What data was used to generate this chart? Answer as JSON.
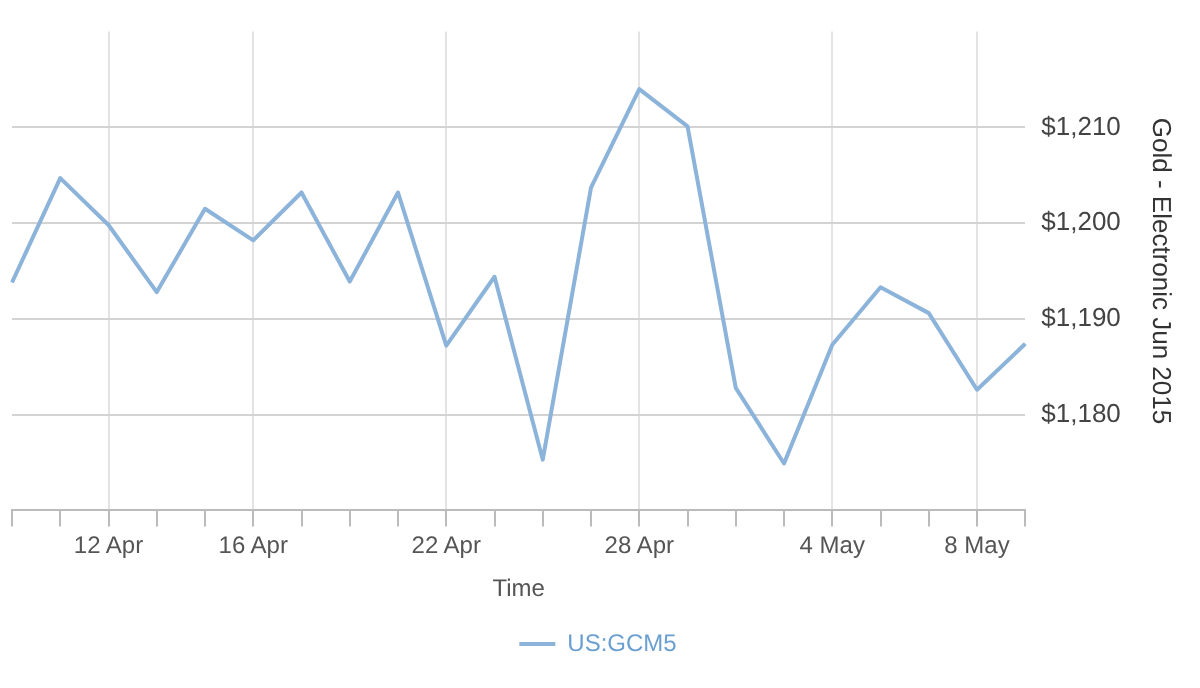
{
  "chart_data": {
    "type": "line",
    "xlabel": "Time",
    "ylabel": "Gold - Electronic Jun 2015",
    "categories": [
      null,
      null,
      "12 Apr",
      null,
      null,
      "16 Apr",
      null,
      null,
      null,
      "22 Apr",
      null,
      null,
      null,
      "28 Apr",
      null,
      null,
      null,
      "4 May",
      null,
      null,
      "8 May",
      null
    ],
    "series": [
      {
        "name": "US:GCM5",
        "color": "#8cb3d9",
        "values": [
          1193.8,
          1204.7,
          1199.8,
          1192.8,
          1201.5,
          1198.2,
          1203.2,
          1193.9,
          1203.2,
          1187.2,
          1194.4,
          1175.3,
          1203.7,
          1214,
          1210.1,
          1182.8,
          1174.9,
          1187.3,
          1193.3,
          1190.6,
          1182.6,
          1187.4
        ]
      }
    ],
    "ylim": [
      1170,
      1220
    ],
    "yticks": [
      {
        "value": 1180,
        "label": "$1,180"
      },
      {
        "value": 1190,
        "label": "$1,190"
      },
      {
        "value": 1200,
        "label": "$1,200"
      },
      {
        "value": 1210,
        "label": "$1,210"
      }
    ],
    "grid": true,
    "legend": "bottom",
    "marker": "none",
    "line_style": "solid"
  }
}
